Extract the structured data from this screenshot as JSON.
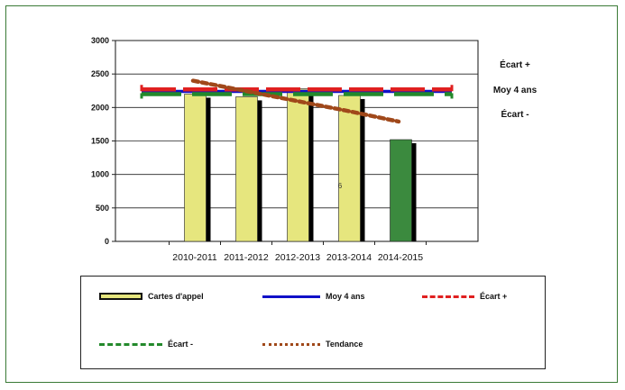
{
  "chart_data": {
    "type": "bar",
    "categories": [
      "2010-2011",
      "2011-2012",
      "2012-2013",
      "2013-2014",
      "2014-2015"
    ],
    "ylim": [
      0,
      3000
    ],
    "yticks": [
      "0",
      "500",
      "1000",
      "1500",
      "2000",
      "2500",
      "3000"
    ],
    "series": [
      {
        "name": "Cartes d'appel",
        "type": "bar",
        "values": [
          2200,
          2160,
          2280,
          2180,
          1520
        ],
        "colors": [
          "#e6e67e",
          "#e6e67e",
          "#e6e67e",
          "#e6e67e",
          "#3b8a3e"
        ]
      },
      {
        "name": "Moy 4 ans",
        "type": "line",
        "value": 2240,
        "color": "#1010c8"
      },
      {
        "name": "Écart +",
        "type": "line",
        "value": 2270,
        "color": "#e02020"
      },
      {
        "name": "Écart -",
        "type": "line",
        "value": 2200,
        "color": "#23892b"
      },
      {
        "name": "Tendance",
        "type": "line",
        "values": [
          2400,
          2250,
          2100,
          1950,
          1790
        ],
        "color": "#a0481a"
      }
    ],
    "annotations": [
      {
        "text": "Écart +"
      },
      {
        "text": "Moy 4 ans"
      },
      {
        "text": "Écart -"
      },
      {
        "text": "6"
      }
    ],
    "grid": true,
    "legend": "bottom"
  },
  "legend": {
    "items": [
      {
        "label": "Cartes d'appel"
      },
      {
        "label": "Moy 4 ans"
      },
      {
        "label": "Écart +"
      },
      {
        "label": "Écart -"
      },
      {
        "label": "Tendance"
      }
    ]
  }
}
